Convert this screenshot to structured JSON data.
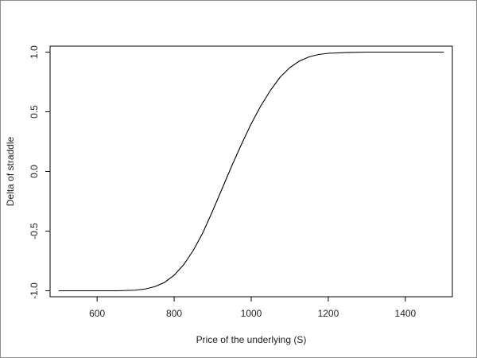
{
  "chart_data": {
    "type": "line",
    "title": "",
    "xlabel": "Price of the underlying (S)",
    "ylabel": "Delta of straddle",
    "xlim": [
      478,
      1522
    ],
    "ylim": [
      -1.05,
      1.05
    ],
    "xticks": [
      600,
      800,
      1000,
      1200,
      1400
    ],
    "xtick_labels": [
      "600",
      "800",
      "1000",
      "1200",
      "1400"
    ],
    "yticks": [
      -1.0,
      -0.5,
      0.0,
      0.5,
      1.0
    ],
    "ytick_labels": [
      "-1.0",
      "-0.5",
      "0.0",
      "0.5",
      "1.0"
    ],
    "grid": false,
    "legend": "none",
    "line_color": "#000000",
    "series": [
      {
        "x": [
          500,
          550,
          600,
          650,
          700,
          725,
          750,
          775,
          800,
          825,
          850,
          875,
          900,
          925,
          950,
          975,
          1000,
          1025,
          1050,
          1075,
          1100,
          1125,
          1150,
          1175,
          1200,
          1250,
          1300,
          1350,
          1400,
          1450,
          1500
        ],
        "y": [
          -1.0,
          -1.0,
          -1.0,
          -1.0,
          -0.995,
          -0.985,
          -0.965,
          -0.93,
          -0.87,
          -0.78,
          -0.66,
          -0.51,
          -0.33,
          -0.14,
          0.05,
          0.23,
          0.4,
          0.55,
          0.68,
          0.79,
          0.87,
          0.925,
          0.96,
          0.98,
          0.99,
          0.997,
          1.0,
          1.0,
          1.0,
          1.0,
          1.0
        ]
      }
    ]
  }
}
